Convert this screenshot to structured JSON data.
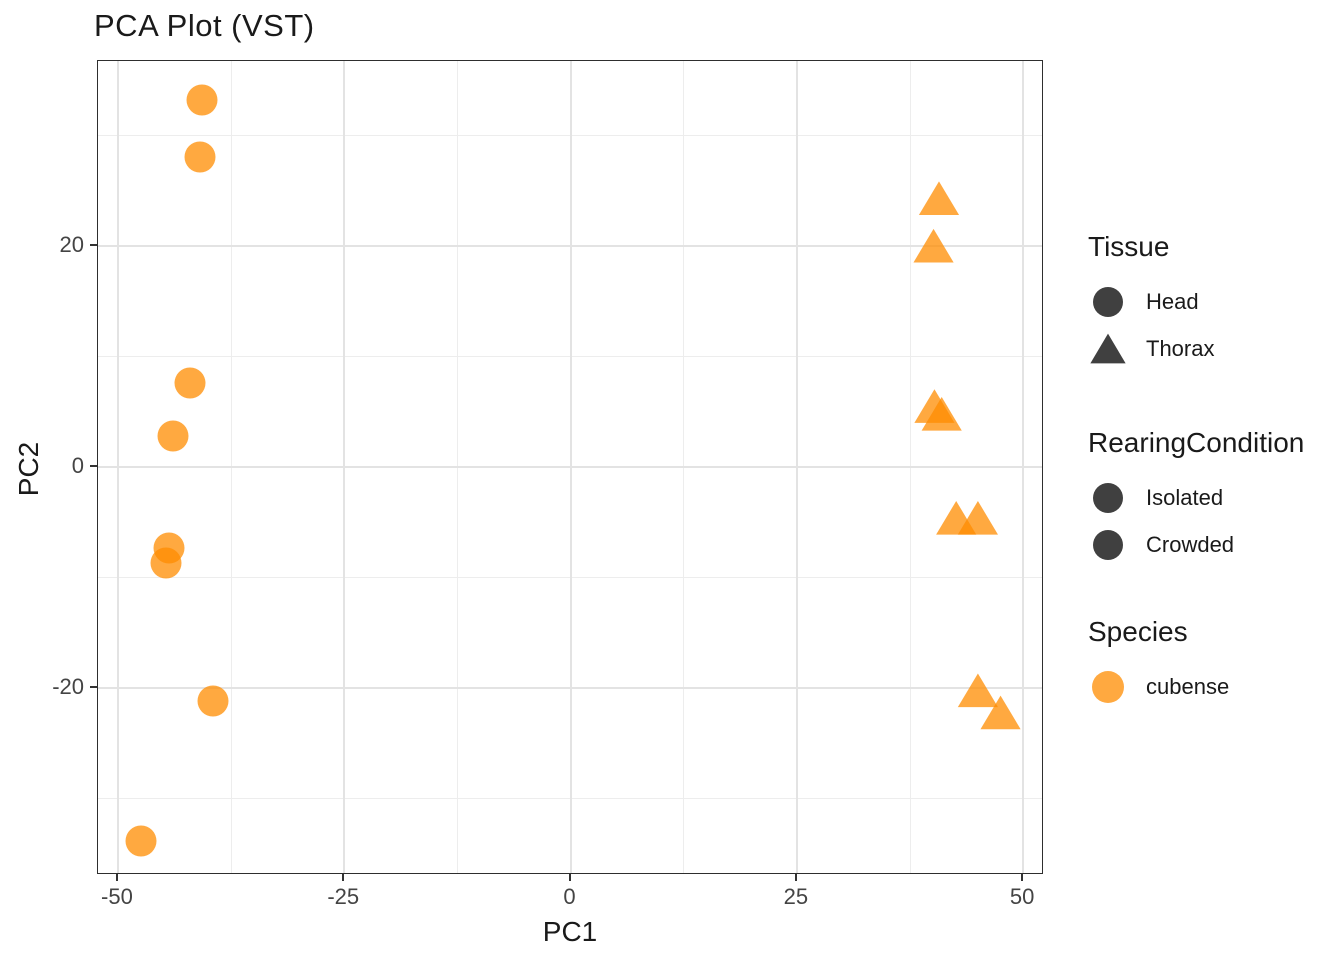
{
  "title": "PCA Plot (VST)",
  "colors": {
    "point": "#FF8C00",
    "point_alpha": 0.75,
    "legend_glyph_dark": "#000000",
    "legend_glyph_dark_alpha": 0.75,
    "legend_glyph_orange": "#FF8C00",
    "grid_major": "#e3e3e3",
    "grid_minor": "#ededed",
    "panel_border": "#2e2e2e",
    "tick_text": "#444444"
  },
  "chart_data": {
    "type": "scatter",
    "title": "PCA Plot (VST)",
    "xlabel": "PC1",
    "ylabel": "PC2",
    "xlim": [
      -52.2,
      52.3
    ],
    "ylim": [
      -36.9,
      36.7
    ],
    "x_major_ticks": [
      -50,
      -25,
      0,
      25,
      50
    ],
    "x_minor_ticks": [
      -37.5,
      -12.5,
      12.5,
      37.5
    ],
    "y_major_ticks": [
      -20,
      0,
      20
    ],
    "y_minor_ticks": [
      -30,
      -10,
      10,
      30
    ],
    "grid": true,
    "legend_position": "right",
    "series": [
      {
        "name": "Head",
        "marker": "circle",
        "species": "cubense",
        "points": [
          [
            -40.7,
            33.2
          ],
          [
            -40.9,
            28.0
          ],
          [
            -42.0,
            7.6
          ],
          [
            -43.9,
            2.8
          ],
          [
            -44.4,
            -7.3
          ],
          [
            -44.7,
            -8.7
          ],
          [
            -39.5,
            -21.2
          ],
          [
            -47.5,
            -33.8
          ]
        ]
      },
      {
        "name": "Thorax",
        "marker": "triangle",
        "species": "cubense",
        "points": [
          [
            40.7,
            24.3
          ],
          [
            40.1,
            20.0
          ],
          [
            40.2,
            5.5
          ],
          [
            41.0,
            4.8
          ],
          [
            42.6,
            -4.6
          ],
          [
            45.0,
            -4.6
          ],
          [
            45.0,
            -20.2
          ],
          [
            47.5,
            -22.2
          ]
        ]
      }
    ]
  },
  "legend": {
    "groups": [
      {
        "title": "Tissue",
        "items": [
          {
            "label": "Head",
            "marker": "circle",
            "color": "dark"
          },
          {
            "label": "Thorax",
            "marker": "triangle",
            "color": "dark"
          }
        ]
      },
      {
        "title": "RearingCondition",
        "items": [
          {
            "label": "Isolated",
            "marker": "circle",
            "color": "dark"
          },
          {
            "label": "Crowded",
            "marker": "circle",
            "color": "dark"
          }
        ]
      },
      {
        "title": "Species",
        "items": [
          {
            "label": "cubense",
            "marker": "circle",
            "color": "orange"
          }
        ]
      }
    ]
  }
}
